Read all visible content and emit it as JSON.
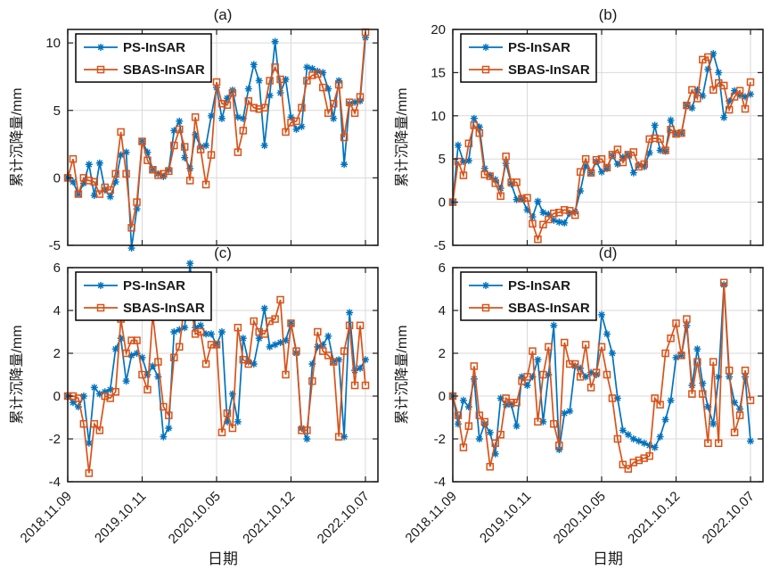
{
  "figure": {
    "background": "#ffffff",
    "axis_color": "#1f1f1f",
    "grid_color": "#d9d9d9",
    "text_color": "#1a1a1a",
    "xlabel": "日期",
    "ylabel": "累计沉降量/mm",
    "legend": {
      "items": [
        {
          "label": "PS-InSAR",
          "color": "#0072BD",
          "marker": "asterisk"
        },
        {
          "label": "SBAS-InSAR",
          "color": "#D95319",
          "marker": "open-square"
        }
      ],
      "position": "top-left",
      "border_color": "#000000",
      "background": "#ffffff"
    },
    "xticklabels": [
      "2018.11.09",
      "2019.10.11",
      "2020.10.05",
      "2021.10.12",
      "2022.10.07"
    ]
  },
  "chart_data": [
    {
      "type": "line",
      "title": "(a)",
      "xlabel": "日期",
      "ylabel": "累计沉降量/mm",
      "x_tick_labels": [
        "2018.11.09",
        "2019.10.11",
        "2020.10.05",
        "2021.10.12",
        "2022.10.07"
      ],
      "x_tick_indices": [
        0,
        14,
        28,
        42,
        56
      ],
      "yticks": [
        -5,
        0,
        5,
        10
      ],
      "ylim": [
        -5,
        11
      ],
      "grid": true,
      "legend_position": "top-left",
      "series": [
        {
          "name": "PS-InSAR",
          "color": "#0072BD",
          "marker": "asterisk",
          "values": [
            0,
            -0.3,
            -1.2,
            -0.4,
            1.0,
            -1.3,
            1.1,
            -0.9,
            -1.4,
            -0.3,
            1.7,
            1.9,
            -5.2,
            -2.3,
            2.7,
            1.9,
            0.6,
            0.3,
            0.1,
            0.6,
            3.5,
            4.2,
            1.5,
            0.7,
            3.2,
            2.3,
            2.4,
            4.6,
            6.7,
            4.4,
            5.9,
            6.5,
            4.5,
            4.4,
            6.6,
            8.4,
            7.2,
            2.4,
            6.1,
            10.1,
            6.3,
            7.3,
            4.5,
            3.6,
            3.8,
            8.2,
            8.1,
            7.9,
            7.8,
            6.6,
            4.4,
            7.2,
            1.0,
            5.5,
            5.6,
            5.7,
            10.4
          ]
        },
        {
          "name": "SBAS-InSAR",
          "color": "#D95319",
          "marker": "open-square",
          "values": [
            0,
            1.4,
            -1.2,
            0.0,
            -0.2,
            -0.3,
            -1.2,
            -0.7,
            -0.9,
            0.3,
            3.4,
            0.3,
            -3.7,
            -1.8,
            2.7,
            1.3,
            0.6,
            0.2,
            0.3,
            0.5,
            2.4,
            3.6,
            2.3,
            -0.2,
            4.5,
            2.1,
            -0.5,
            1.7,
            7.1,
            5.5,
            5.4,
            6.3,
            1.9,
            3.5,
            5.7,
            5.2,
            5.1,
            5.2,
            7.2,
            8.2,
            7.3,
            3.4,
            4.1,
            4.2,
            5.2,
            7.2,
            7.6,
            7.7,
            6.7,
            4.8,
            5.5,
            6.9,
            3.0,
            5.6,
            4.8,
            6.0,
            10.8
          ]
        }
      ]
    },
    {
      "type": "line",
      "title": "(b)",
      "xlabel": "日期",
      "ylabel": "累计沉降量/mm",
      "x_tick_labels": [
        "2018.11.09",
        "2019.10.11",
        "2020.10.05",
        "2021.10.12",
        "2022.10.07"
      ],
      "x_tick_indices": [
        0,
        14,
        28,
        42,
        56
      ],
      "yticks": [
        -5,
        0,
        5,
        10,
        15,
        20
      ],
      "ylim": [
        -5,
        20
      ],
      "grid": true,
      "legend_position": "top-left",
      "series": [
        {
          "name": "PS-InSAR",
          "color": "#0072BD",
          "marker": "asterisk",
          "values": [
            0,
            6.6,
            4.7,
            4.8,
            9.7,
            8.7,
            3.9,
            3.1,
            2.6,
            1.6,
            4.5,
            2.1,
            0.3,
            0.4,
            -0.9,
            -1.7,
            0.1,
            -1.2,
            -1.4,
            -2.1,
            -2.3,
            -2.4,
            -1.3,
            -1.1,
            1.3,
            4.2,
            3.4,
            4.7,
            3.5,
            3.9,
            5.4,
            4.4,
            5.2,
            5.5,
            3.4,
            4.3,
            4.1,
            5.7,
            8.9,
            6.0,
            5.9,
            9.5,
            7.9,
            8.0,
            11.2,
            10.9,
            13.0,
            12.3,
            15.4,
            17.2,
            15.0,
            9.8,
            11.7,
            12.9,
            12.4,
            12.2,
            12.5
          ]
        },
        {
          "name": "SBAS-InSAR",
          "color": "#D95319",
          "marker": "open-square",
          "values": [
            0,
            4.7,
            3.1,
            6.8,
            8.9,
            8.0,
            3.2,
            3.0,
            2.2,
            0.7,
            5.3,
            2.3,
            2.3,
            0.4,
            0.5,
            -2.5,
            -4.3,
            -2.6,
            -2.0,
            -1.3,
            -1.2,
            -0.9,
            -1.0,
            -1.5,
            3.5,
            5.0,
            3.4,
            4.9,
            5.0,
            4.0,
            5.5,
            6.1,
            4.6,
            5.5,
            5.8,
            4.1,
            4.4,
            7.3,
            7.4,
            7.3,
            6.0,
            8.4,
            7.9,
            8.0,
            11.2,
            13.0,
            12.0,
            16.5,
            16.8,
            13.0,
            13.8,
            13.5,
            10.7,
            12.2,
            12.9,
            10.8,
            13.9
          ]
        }
      ]
    },
    {
      "type": "line",
      "title": "(c)",
      "xlabel": "日期",
      "ylabel": "累计沉降量/mm",
      "x_tick_labels": [
        "2018.11.09",
        "2019.10.11",
        "2020.10.05",
        "2021.10.12",
        "2022.10.07"
      ],
      "x_tick_indices": [
        0,
        14,
        28,
        42,
        56
      ],
      "yticks": [
        -4,
        -2,
        0,
        2,
        4,
        6
      ],
      "ylim": [
        -4,
        6
      ],
      "grid": true,
      "legend_position": "top-left",
      "series": [
        {
          "name": "PS-InSAR",
          "color": "#0072BD",
          "marker": "asterisk",
          "values": [
            0,
            -0.3,
            -0.5,
            0.0,
            -2.2,
            0.4,
            0.1,
            0.2,
            0.3,
            2.2,
            2.7,
            0.7,
            1.9,
            2.0,
            1.8,
            1.0,
            1.4,
            0.9,
            -1.9,
            -1.5,
            3.0,
            3.1,
            3.2,
            6.2,
            3.2,
            3.3,
            2.9,
            2.9,
            2.4,
            3.0,
            -1.2,
            0.1,
            -1.2,
            2.7,
            1.6,
            1.5,
            2.7,
            4.1,
            2.3,
            2.4,
            2.5,
            2.6,
            3.4,
            2.0,
            -1.5,
            -2.0,
            1.5,
            2.3,
            2.4,
            2.8,
            1.6,
            1.7,
            -1.9,
            3.9,
            1.2,
            1.3,
            1.7
          ]
        },
        {
          "name": "SBAS-InSAR",
          "color": "#D95319",
          "marker": "open-square",
          "values": [
            0,
            0.0,
            -0.1,
            -1.3,
            -3.6,
            -1.3,
            -1.6,
            0.0,
            -0.1,
            0.2,
            3.6,
            2.0,
            2.6,
            2.6,
            1.0,
            0.3,
            3.8,
            1.6,
            -0.5,
            -0.9,
            1.8,
            2.3,
            4.4,
            4.5,
            2.9,
            3.0,
            1.5,
            2.4,
            2.4,
            -1.7,
            -0.8,
            -1.5,
            3.2,
            1.7,
            1.5,
            3.5,
            3.0,
            2.9,
            3.5,
            3.6,
            4.5,
            1.0,
            3.4,
            2.1,
            -1.6,
            -1.6,
            0.7,
            3.0,
            2.1,
            1.9,
            1.6,
            -1.9,
            2.1,
            3.3,
            0.5,
            3.3,
            0.5
          ]
        }
      ]
    },
    {
      "type": "line",
      "title": "(d)",
      "xlabel": "日期",
      "ylabel": "累计沉降量/mm",
      "x_tick_labels": [
        "2018.11.09",
        "2019.10.11",
        "2020.10.05",
        "2021.10.12",
        "2022.10.07"
      ],
      "x_tick_indices": [
        0,
        14,
        28,
        42,
        56
      ],
      "yticks": [
        -4,
        -2,
        0,
        2,
        4,
        6
      ],
      "ylim": [
        -4,
        6
      ],
      "grid": true,
      "legend_position": "top-left",
      "series": [
        {
          "name": "PS-InSAR",
          "color": "#0072BD",
          "marker": "asterisk",
          "values": [
            0,
            -1.3,
            -0.2,
            -0.5,
            0.8,
            -2.0,
            -1.3,
            -1.7,
            -2.7,
            -0.1,
            -0.4,
            -0.4,
            -1.4,
            0.9,
            0.5,
            0.9,
            1.7,
            -1.2,
            1.0,
            3.3,
            -2.5,
            -0.8,
            -0.7,
            1.4,
            1.3,
            0.9,
            1.1,
            1.0,
            3.8,
            2.9,
            2.0,
            -0.1,
            -1.6,
            -1.8,
            -2.0,
            -2.1,
            -2.2,
            -2.3,
            -2.4,
            -1.9,
            -1.1,
            -0.2,
            1.8,
            1.9,
            3.3,
            0.5,
            2.2,
            0.6,
            -0.5,
            -1.3,
            0.9,
            5.2,
            0.9,
            -0.3,
            -0.6,
            0.9,
            -2.1
          ]
        },
        {
          "name": "SBAS-InSAR",
          "color": "#D95319",
          "marker": "open-square",
          "values": [
            0,
            -0.9,
            -2.4,
            -1.4,
            1.4,
            -0.9,
            -1.2,
            -3.3,
            -2.2,
            -1.8,
            -0.1,
            -0.3,
            -0.3,
            0.7,
            0.9,
            2.1,
            -1.2,
            1.0,
            2.3,
            -1.3,
            -2.3,
            2.5,
            1.5,
            1.5,
            0.9,
            2.4,
            0.4,
            1.1,
            2.3,
            1.0,
            -0.1,
            -2.0,
            -3.2,
            -3.4,
            -3.1,
            -3.0,
            -2.9,
            -2.8,
            -0.1,
            -0.4,
            2.0,
            2.7,
            3.4,
            1.9,
            3.6,
            0.1,
            1.6,
            0.1,
            -2.2,
            1.6,
            -2.2,
            5.3,
            1.2,
            -1.7,
            -0.9,
            1.2,
            -0.2
          ]
        }
      ]
    }
  ]
}
